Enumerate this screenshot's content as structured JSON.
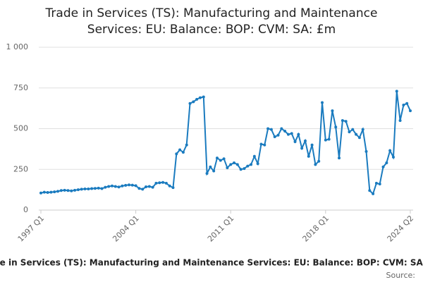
{
  "chart_data": {
    "type": "line",
    "title": [
      "Trade in Services (TS): Manufacturing and Maintenance",
      "Services: EU: Balance: BOP: CVM: SA: £m"
    ],
    "categories": [
      "1997 Q1",
      null,
      null,
      null,
      null,
      null,
      null,
      null,
      null,
      null,
      null,
      null,
      null,
      null,
      null,
      null,
      null,
      null,
      null,
      null,
      null,
      null,
      null,
      null,
      null,
      null,
      null,
      null,
      "2004 Q1",
      null,
      null,
      null,
      null,
      null,
      null,
      null,
      null,
      null,
      null,
      null,
      null,
      null,
      null,
      null,
      null,
      null,
      null,
      null,
      null,
      null,
      null,
      null,
      null,
      null,
      null,
      null,
      "2011 Q1",
      null,
      null,
      null,
      null,
      null,
      null,
      null,
      null,
      null,
      null,
      null,
      null,
      null,
      null,
      null,
      null,
      null,
      null,
      null,
      null,
      null,
      null,
      null,
      null,
      null,
      null,
      null,
      "2018 Q1",
      null,
      null,
      null,
      null,
      null,
      null,
      null,
      null,
      null,
      null,
      null,
      null,
      null,
      null,
      null,
      null,
      null,
      null,
      null,
      null,
      null,
      null,
      null,
      null,
      "2024 Q2"
    ],
    "values": [
      105,
      110,
      108,
      110,
      112,
      115,
      120,
      122,
      120,
      118,
      122,
      125,
      128,
      130,
      130,
      132,
      133,
      135,
      132,
      140,
      145,
      148,
      145,
      142,
      148,
      152,
      155,
      153,
      150,
      133,
      128,
      143,
      145,
      140,
      165,
      168,
      170,
      165,
      148,
      138,
      345,
      370,
      355,
      400,
      655,
      665,
      680,
      690,
      695,
      225,
      265,
      240,
      320,
      305,
      315,
      260,
      280,
      290,
      280,
      250,
      255,
      270,
      280,
      330,
      285,
      405,
      400,
      500,
      495,
      450,
      460,
      500,
      485,
      465,
      470,
      420,
      465,
      380,
      425,
      330,
      400,
      280,
      300,
      660,
      430,
      435,
      610,
      510,
      320,
      550,
      545,
      480,
      495,
      465,
      445,
      495,
      360,
      120,
      100,
      165,
      160,
      265,
      290,
      365,
      325,
      730,
      550,
      645,
      655,
      610
    ],
    "color": "#1a7bbf",
    "ylim": [
      0,
      1000
    ],
    "yticks": [
      0,
      250,
      500,
      750,
      {
        "value": 1000,
        "label": "1 000"
      }
    ],
    "grid": true,
    "footer_title": "Trade in Services (TS): Manufacturing and Maintenance Services: EU: Balance: BOP: CVM: SA: £m",
    "source": "Source:"
  }
}
